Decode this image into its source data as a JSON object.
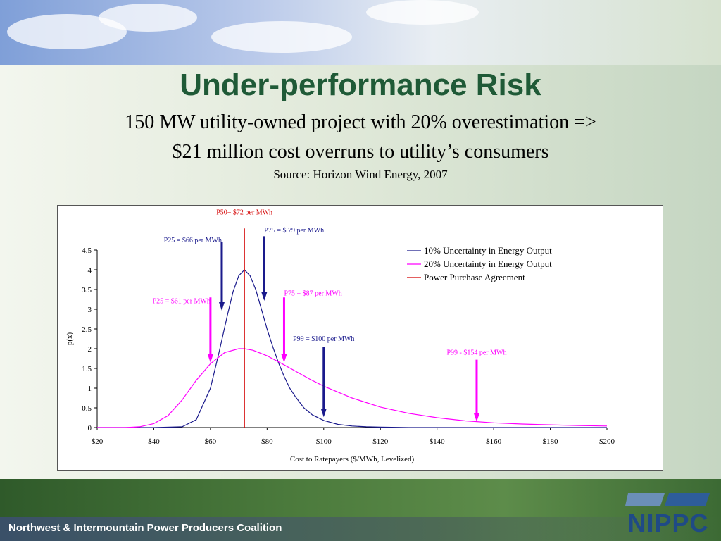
{
  "slide": {
    "title": "Under-performance Risk",
    "subtitle_line1": "150 MW utility-owned project with 20% overestimation =>",
    "subtitle_line2": "$21 million cost overruns to utility’s consumers",
    "source": "Source: Horizon Wind Energy, 2007"
  },
  "footer": {
    "org_name": "Northwest & Intermountain Power Producers Coalition",
    "logo_text": "NIPPC"
  },
  "chart_data": {
    "type": "line",
    "xlabel": "Cost to Ratepayers ($/MWh, Levelized)",
    "ylabel": "p(x)",
    "xlim": [
      20,
      200
    ],
    "ylim": [
      0,
      4.5
    ],
    "x_ticks": [
      20,
      40,
      60,
      80,
      100,
      120,
      140,
      160,
      180,
      200
    ],
    "x_tick_labels": [
      "$20",
      "$40",
      "$60",
      "$80",
      "$100",
      "$120",
      "$140",
      "$160",
      "$180",
      "$200"
    ],
    "y_ticks": [
      0,
      0.5,
      1,
      1.5,
      2,
      2.5,
      3,
      3.5,
      4,
      4.5
    ],
    "y_tick_labels": [
      "0",
      "0.5",
      "1",
      "1.5",
      "2",
      "2.5",
      "3",
      "3.5",
      "4",
      "4.5"
    ],
    "legend_position": "top-right",
    "series": [
      {
        "name": "10% Uncertainty in Energy Output",
        "color": "#1a1a8c",
        "x": [
          20,
          40,
          50,
          55,
          60,
          63,
          66,
          68,
          70,
          72,
          74,
          76,
          78,
          80,
          82,
          84,
          86,
          88,
          90,
          93,
          96,
          100,
          105,
          110,
          115,
          120,
          130,
          140,
          160,
          180,
          200
        ],
        "y": [
          0,
          0,
          0.02,
          0.2,
          1.0,
          1.9,
          2.85,
          3.45,
          3.85,
          4.0,
          3.85,
          3.5,
          3.0,
          2.5,
          2.05,
          1.65,
          1.3,
          1.0,
          0.78,
          0.5,
          0.32,
          0.18,
          0.08,
          0.04,
          0.02,
          0.01,
          0,
          0,
          0,
          0,
          0
        ]
      },
      {
        "name": "20% Uncertainty in Energy Output",
        "color": "#ff00ff",
        "x": [
          20,
          30,
          35,
          40,
          45,
          50,
          55,
          60,
          65,
          70,
          72,
          75,
          80,
          85,
          90,
          95,
          100,
          110,
          120,
          130,
          140,
          150,
          160,
          170,
          180,
          190,
          200
        ],
        "y": [
          0,
          0,
          0.02,
          0.1,
          0.3,
          0.7,
          1.2,
          1.62,
          1.9,
          2.0,
          2.0,
          1.96,
          1.82,
          1.63,
          1.43,
          1.23,
          1.05,
          0.75,
          0.52,
          0.36,
          0.25,
          0.17,
          0.12,
          0.09,
          0.07,
          0.05,
          0.04
        ]
      },
      {
        "name": "Power Purchase Agreement",
        "color": "#d40000",
        "x": [
          72,
          72
        ],
        "y": [
          0,
          5.05
        ]
      }
    ],
    "annotations": [
      {
        "text": "P50= $72 per MWh",
        "color": "#d40000",
        "x": 72,
        "label_y": 5.4,
        "anchor": "middle"
      },
      {
        "text": "P75 = $ 79 per MWh",
        "color": "#1a1a8c",
        "x": 79,
        "label_y": 4.95,
        "anchor": "start",
        "arrow_top": 4.85,
        "arrow_bottom": 3.25
      },
      {
        "text": "P25 = $66 per MWh",
        "color": "#1a1a8c",
        "x": 64,
        "label_y": 4.7,
        "anchor": "end",
        "arrow_top": 4.7,
        "arrow_bottom": 3.0
      },
      {
        "text": "P75 = $87 per MWh",
        "color": "#ff00ff",
        "x": 86,
        "label_y": 3.35,
        "anchor": "start",
        "arrow_top": 3.3,
        "arrow_bottom": 1.68
      },
      {
        "text": "P25 = $61 per MWh",
        "color": "#ff00ff",
        "x": 60,
        "label_y": 3.15,
        "anchor": "end",
        "arrow_top": 3.3,
        "arrow_bottom": 1.68
      },
      {
        "text": "P99 = $100 per MWh",
        "color": "#1a1a8c",
        "x": 100,
        "label_y": 2.2,
        "anchor": "middle",
        "arrow_top": 2.05,
        "arrow_bottom": 0.3
      },
      {
        "text": "P99 - $154 per MWh",
        "color": "#ff00ff",
        "x": 154,
        "label_y": 1.85,
        "anchor": "middle",
        "arrow_top": 1.72,
        "arrow_bottom": 0.18
      }
    ]
  }
}
